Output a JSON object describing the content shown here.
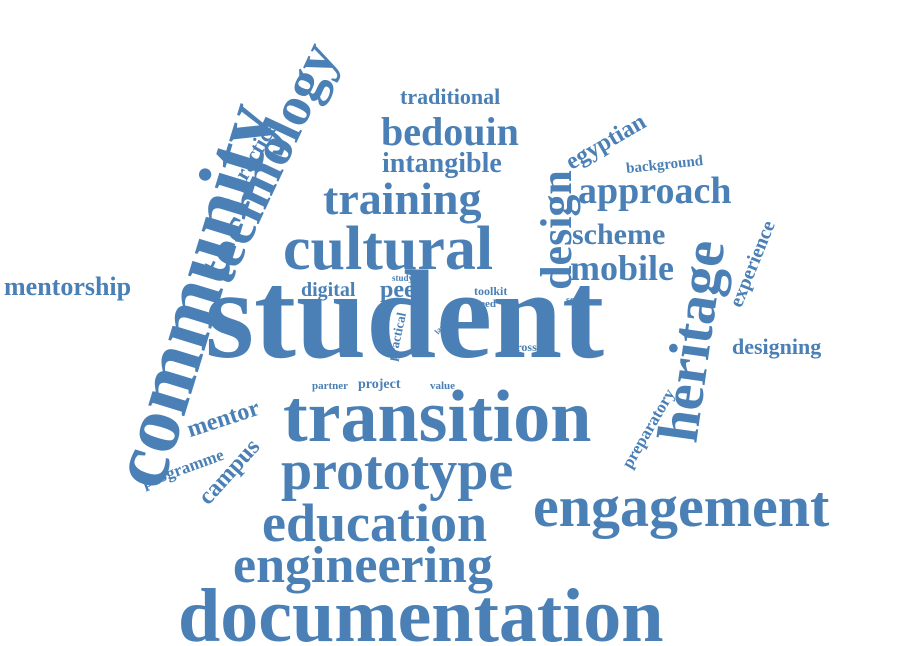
{
  "style": {
    "word_color": "#4a80b5",
    "background": "#ffffff"
  },
  "words": {
    "student": "student",
    "documentation": "documentation",
    "transition": "transition",
    "engagement": "engagement",
    "community": "community",
    "prototype": "prototype",
    "education": "education",
    "engineering": "engineering",
    "technology": "technology",
    "cultural": "cultural",
    "heritage": "heritage",
    "training": "training",
    "bedouin": "bedouin",
    "approach": "approach",
    "design": "design",
    "mobile": "mobile",
    "scheme": "scheme",
    "intangible": "intangible",
    "mentorship": "mentorship",
    "traditional": "traditional",
    "egyptian": "egyptian",
    "practice": "practice",
    "experience": "experience",
    "designing": "designing",
    "mentor": "mentor",
    "campus": "campus",
    "programme": "programme",
    "preparatory": "preparatory",
    "digital": "digital",
    "peer": "peer",
    "background": "background",
    "project": "project",
    "partner": "partner",
    "value": "value",
    "practical": "practical",
    "toolkit": "toolkit",
    "need": "need",
    "cross": "cross",
    "social": "social",
    "study": "study",
    "lack": "lack"
  }
}
